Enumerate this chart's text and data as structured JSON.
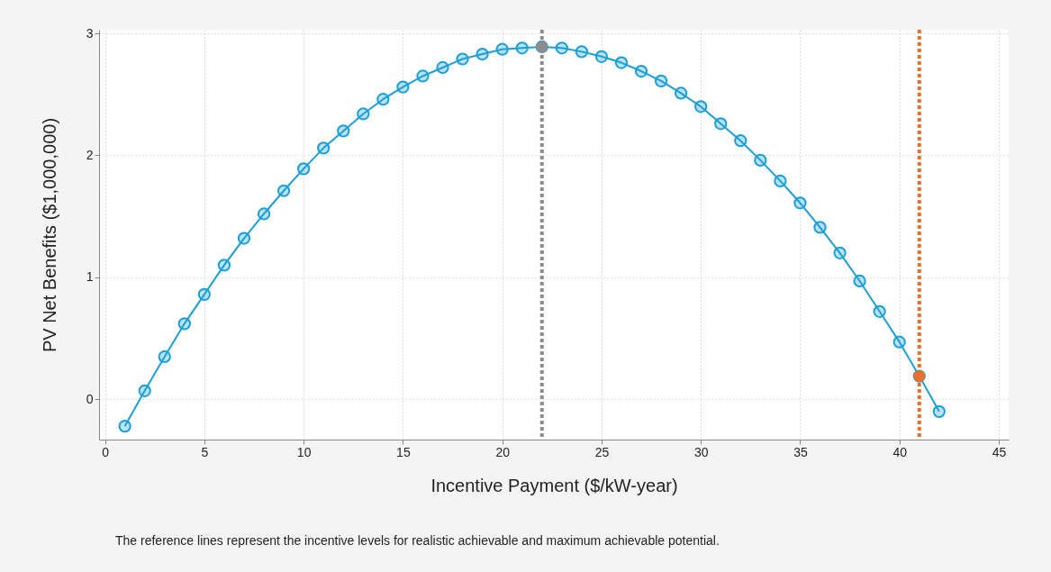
{
  "chart_data": {
    "type": "line",
    "xlabel": "Incentive Payment ($/kW-year)",
    "ylabel": "PV Net Benefits ($1,000,000)",
    "x": [
      1,
      2,
      3,
      4,
      5,
      6,
      7,
      8,
      9,
      10,
      11,
      12,
      13,
      14,
      15,
      16,
      17,
      18,
      19,
      20,
      21,
      22,
      23,
      24,
      25,
      26,
      27,
      28,
      29,
      30,
      31,
      32,
      33,
      34,
      35,
      36,
      37,
      38,
      39,
      40,
      41,
      42
    ],
    "series": [
      {
        "color": "#1a9fd8",
        "marker": "circle",
        "values": [
          -0.22,
          0.07,
          0.35,
          0.62,
          0.86,
          1.1,
          1.32,
          1.52,
          1.71,
          1.89,
          2.06,
          2.2,
          2.34,
          2.46,
          2.56,
          2.65,
          2.72,
          2.79,
          2.83,
          2.87,
          2.88,
          2.89,
          2.88,
          2.85,
          2.81,
          2.76,
          2.69,
          2.61,
          2.51,
          2.4,
          2.26,
          2.12,
          1.96,
          1.79,
          1.61,
          1.41,
          1.2,
          0.97,
          0.72,
          0.47,
          0.19,
          -0.1
        ]
      },
      {
        "type": "scatter",
        "x": [
          22,
          41
        ],
        "colors": [
          "#8c8c8c",
          "#e8702a"
        ],
        "values": [
          2.89,
          0.19
        ]
      }
    ],
    "xlim": [
      -0.3,
      45.5
    ],
    "xticks": [
      0,
      5,
      10,
      15,
      20,
      25,
      30,
      35,
      40,
      45
    ],
    "ylim": [
      -0.33,
      3.03
    ],
    "yticks": [
      0,
      1,
      2,
      3
    ],
    "grid": true,
    "line_style": "solid",
    "ref_lines": [
      {
        "axis": "x",
        "value": 22,
        "color": "#8c8c8c",
        "line_style": "dotted"
      },
      {
        "axis": "x",
        "value": 41,
        "color": "#e8702a",
        "line_style": "dotted"
      }
    ],
    "annotations": [
      "The reference lines represent the incentive levels for realistic achievable and maximum achievable potential."
    ]
  }
}
